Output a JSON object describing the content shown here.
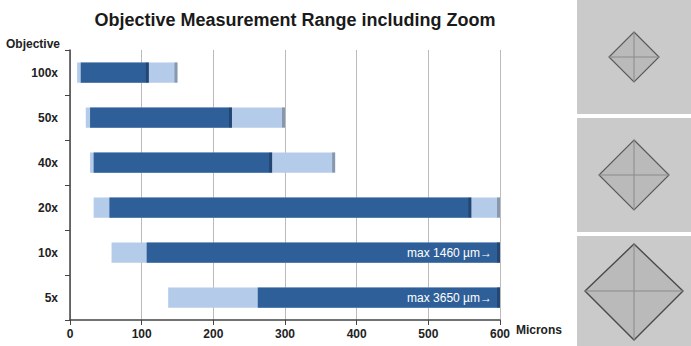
{
  "chart_data": {
    "type": "bar",
    "orientation": "horizontal",
    "title": "Objective Measurement Range including Zoom",
    "x_label": "Microns",
    "y_label": "Objective",
    "categories": [
      "100x",
      "50x",
      "40x",
      "20x",
      "10x",
      "5x"
    ],
    "series": [
      {
        "color": "#b4cbe9",
        "low": [
          10,
          22,
          28,
          33,
          58,
          137
        ],
        "high": [
          150,
          300,
          370,
          600,
          600,
          600
        ]
      },
      {
        "color": "#2f5f98",
        "low": [
          15,
          28,
          33,
          55,
          107,
          262
        ],
        "high": [
          110,
          226,
          282,
          560,
          600,
          600
        ]
      }
    ],
    "xlim": [
      0,
      600
    ],
    "xticks": [
      0,
      100,
      200,
      300,
      400,
      500,
      600
    ],
    "grid": true,
    "annotations": [
      {
        "category": "10x",
        "x": 600,
        "text": "max 1460 µm→"
      },
      {
        "category": "5x",
        "x": 600,
        "text": "max 3650 µm→"
      }
    ]
  }
}
